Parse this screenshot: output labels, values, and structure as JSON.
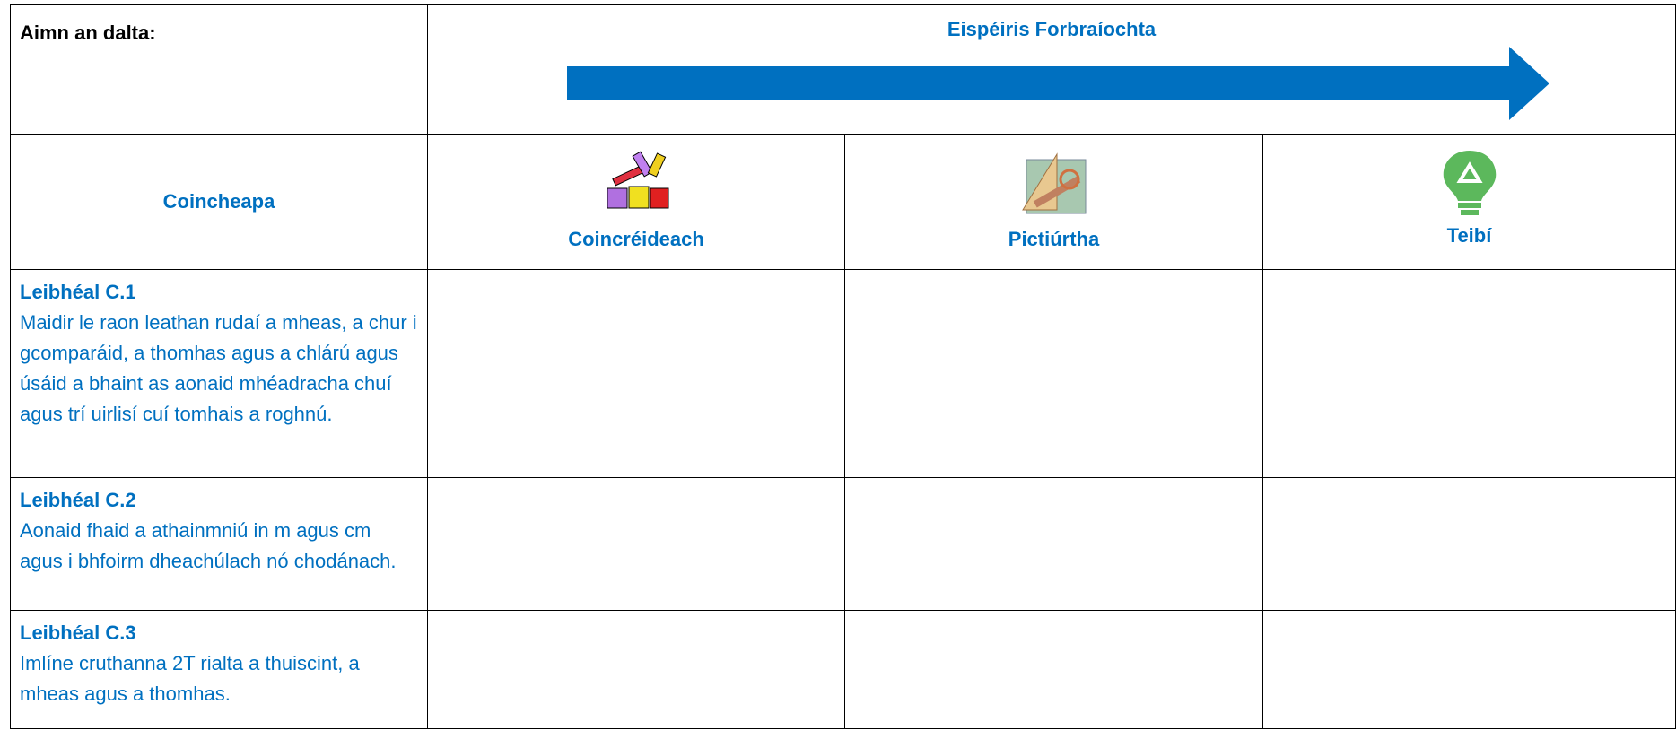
{
  "header": {
    "student_name_label": "Aimn an dalta:",
    "progression_label": "Eispéiris Forbraíochta"
  },
  "table": {
    "columns": [
      "Coincheapa",
      "Coincréideach",
      "Pictiúrtha",
      "Teibí"
    ],
    "rows": [
      {
        "level": "Leibhéal C.1",
        "description": "Maidir le raon leathan rudaí a mheas, a chur i gcomparáid, a thomhas agus a chlárú agus úsáid a bhaint as aonaid mhéadracha chuí agus trí uirlisí cuí tomhais a roghnú."
      },
      {
        "level": "Leibhéal C.2",
        "description": "Aonaid fhaid a athainmniú in m agus cm agus i bhfoirm dheachúlach nó chodánach."
      },
      {
        "level": "Leibhéal C.3",
        "description": "Imlíne cruthanna 2T rialta a thuiscint, a mheas agus a thomhas."
      }
    ]
  }
}
